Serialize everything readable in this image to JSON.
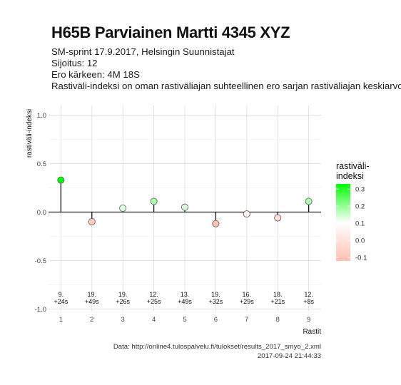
{
  "header": {
    "title": "H65B Parviainen Martti 4345 XYZ",
    "lines": [
      "SM-sprint 17.9.2017, Helsingin Suunnistajat",
      "Sijoitus: 12",
      "Ero kärkeen: 4M 18S",
      "Rastiväli-indeksi on oman rastiväliajan suhteellinen ero sarjan rastiväliajan keskiarvoon"
    ]
  },
  "caption": {
    "source": "Data: http://online4.tulospalvelu.fi/tulokset/results_2017_smyo_2.xml",
    "timestamp": "2017-09-24 21:44:33"
  },
  "chart_data": {
    "type": "scatter",
    "style": "lollipop",
    "x": [
      1,
      2,
      3,
      4,
      5,
      6,
      7,
      8,
      9
    ],
    "values": [
      0.33,
      -0.1,
      0.04,
      0.11,
      0.05,
      -0.12,
      -0.02,
      -0.06,
      0.11
    ],
    "point_labels": [
      [
        "9.",
        "+24s"
      ],
      [
        "19.",
        "+49s"
      ],
      [
        "19.",
        "+26s"
      ],
      [
        "12.",
        "+25s"
      ],
      [
        "13.",
        "+49s"
      ],
      [
        "19.",
        "+32s"
      ],
      [
        "16.",
        "+29s"
      ],
      [
        "18.",
        "+21s"
      ],
      [
        "12.",
        "+8s"
      ]
    ],
    "xlabel": "Rastit",
    "ylabel": "rastiväli-indeksi",
    "xticks": [
      "1",
      "2",
      "3",
      "4",
      "5",
      "6",
      "7",
      "8",
      "9"
    ],
    "yticks": [
      -1.0,
      -0.5,
      0.0,
      0.5,
      1.0
    ],
    "ytick_labels": [
      "-1.0",
      "-0.5",
      "0.0",
      "0.5",
      "1.0"
    ],
    "xlim": [
      0.6,
      9.4
    ],
    "ylim": [
      -1.02,
      1.1
    ],
    "grid": true,
    "legend": {
      "title": "rastiväli-\nindeksi",
      "placement": "right",
      "range": [
        -0.12,
        0.33
      ],
      "ticks": [
        0.3,
        0.2,
        0.1,
        0.0,
        -0.1
      ],
      "tick_labels": [
        "0.3",
        "0.2",
        "0.1",
        "0.0",
        "-0.1"
      ]
    },
    "colors": {
      "high": "#00ff00",
      "mid": "#ffffff",
      "low": "#ffbfb0"
    }
  }
}
